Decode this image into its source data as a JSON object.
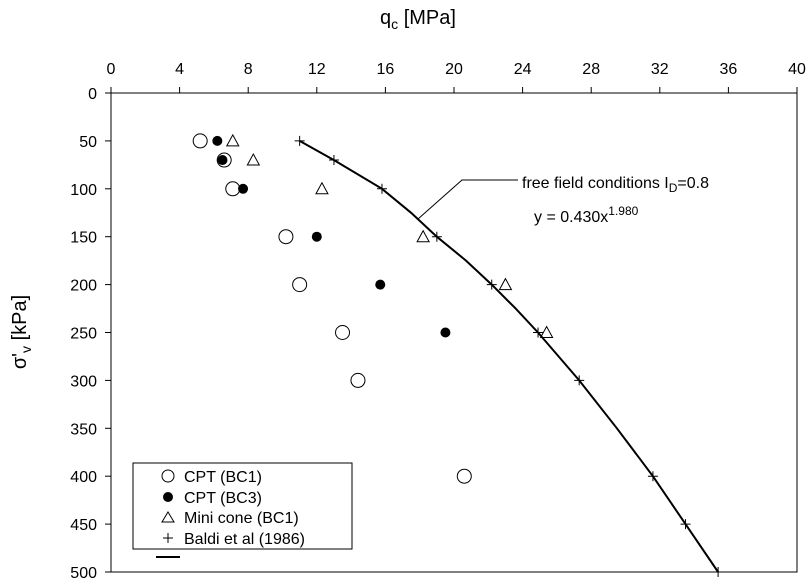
{
  "chart_data": {
    "type": "scatter",
    "title": "",
    "x_axis": {
      "label_main": "q",
      "label_sub": "c",
      "label_unit": " [MPa]",
      "position": "top",
      "range": [
        0,
        40
      ],
      "ticks": [
        0,
        4,
        8,
        12,
        16,
        20,
        24,
        28,
        32,
        36,
        40
      ]
    },
    "y_axis": {
      "label_main": "σ'",
      "label_sub": "v",
      "label_unit": " [kPa]",
      "inverted": true,
      "range": [
        0,
        500
      ],
      "ticks": [
        0,
        50,
        100,
        150,
        200,
        250,
        300,
        350,
        400,
        450,
        500
      ]
    },
    "grid": false,
    "legend_position": "bottom-left",
    "series": [
      {
        "name": "CPT (BC1)",
        "marker": "open-circle",
        "points": [
          [
            5.2,
            50
          ],
          [
            6.6,
            70
          ],
          [
            7.1,
            100
          ],
          [
            10.2,
            150
          ],
          [
            11.0,
            200
          ],
          [
            13.5,
            250
          ],
          [
            14.4,
            300
          ],
          [
            20.6,
            400
          ]
        ]
      },
      {
        "name": "CPT (BC3)",
        "marker": "filled-circle",
        "points": [
          [
            6.2,
            50
          ],
          [
            6.5,
            70
          ],
          [
            7.7,
            100
          ],
          [
            12.0,
            150
          ],
          [
            15.7,
            200
          ],
          [
            19.5,
            250
          ]
        ]
      },
      {
        "name": "Mini cone (BC1)",
        "marker": "open-triangle",
        "points": [
          [
            7.1,
            50
          ],
          [
            8.3,
            70
          ],
          [
            12.3,
            100
          ],
          [
            18.2,
            150
          ],
          [
            23.0,
            200
          ],
          [
            25.4,
            250
          ]
        ]
      },
      {
        "name": "Baldi et al (1986)",
        "marker": "plus",
        "points": [
          [
            11.0,
            50
          ],
          [
            13.0,
            70
          ],
          [
            15.8,
            100
          ],
          [
            19.0,
            150
          ],
          [
            22.2,
            200
          ],
          [
            24.9,
            250
          ],
          [
            27.3,
            300
          ],
          [
            31.6,
            400
          ],
          [
            33.5,
            450
          ],
          [
            35.4,
            500
          ]
        ]
      },
      {
        "name": "",
        "marker": "line",
        "points": [
          [
            11.0,
            50
          ],
          [
            13.0,
            70
          ],
          [
            15.8,
            100
          ],
          [
            17.5,
            125
          ],
          [
            19.0,
            150
          ],
          [
            20.7,
            175
          ],
          [
            22.2,
            200
          ],
          [
            23.6,
            225
          ],
          [
            24.9,
            250
          ],
          [
            27.3,
            300
          ],
          [
            29.5,
            350
          ],
          [
            31.6,
            400
          ],
          [
            33.5,
            450
          ],
          [
            35.4,
            500
          ]
        ]
      }
    ],
    "annotations": {
      "fit_label": "free field conditions I",
      "fit_label_sub": "D",
      "fit_label_end": "=0.8",
      "equation_base": "y = 0.430x",
      "equation_exp": "1.980"
    }
  }
}
